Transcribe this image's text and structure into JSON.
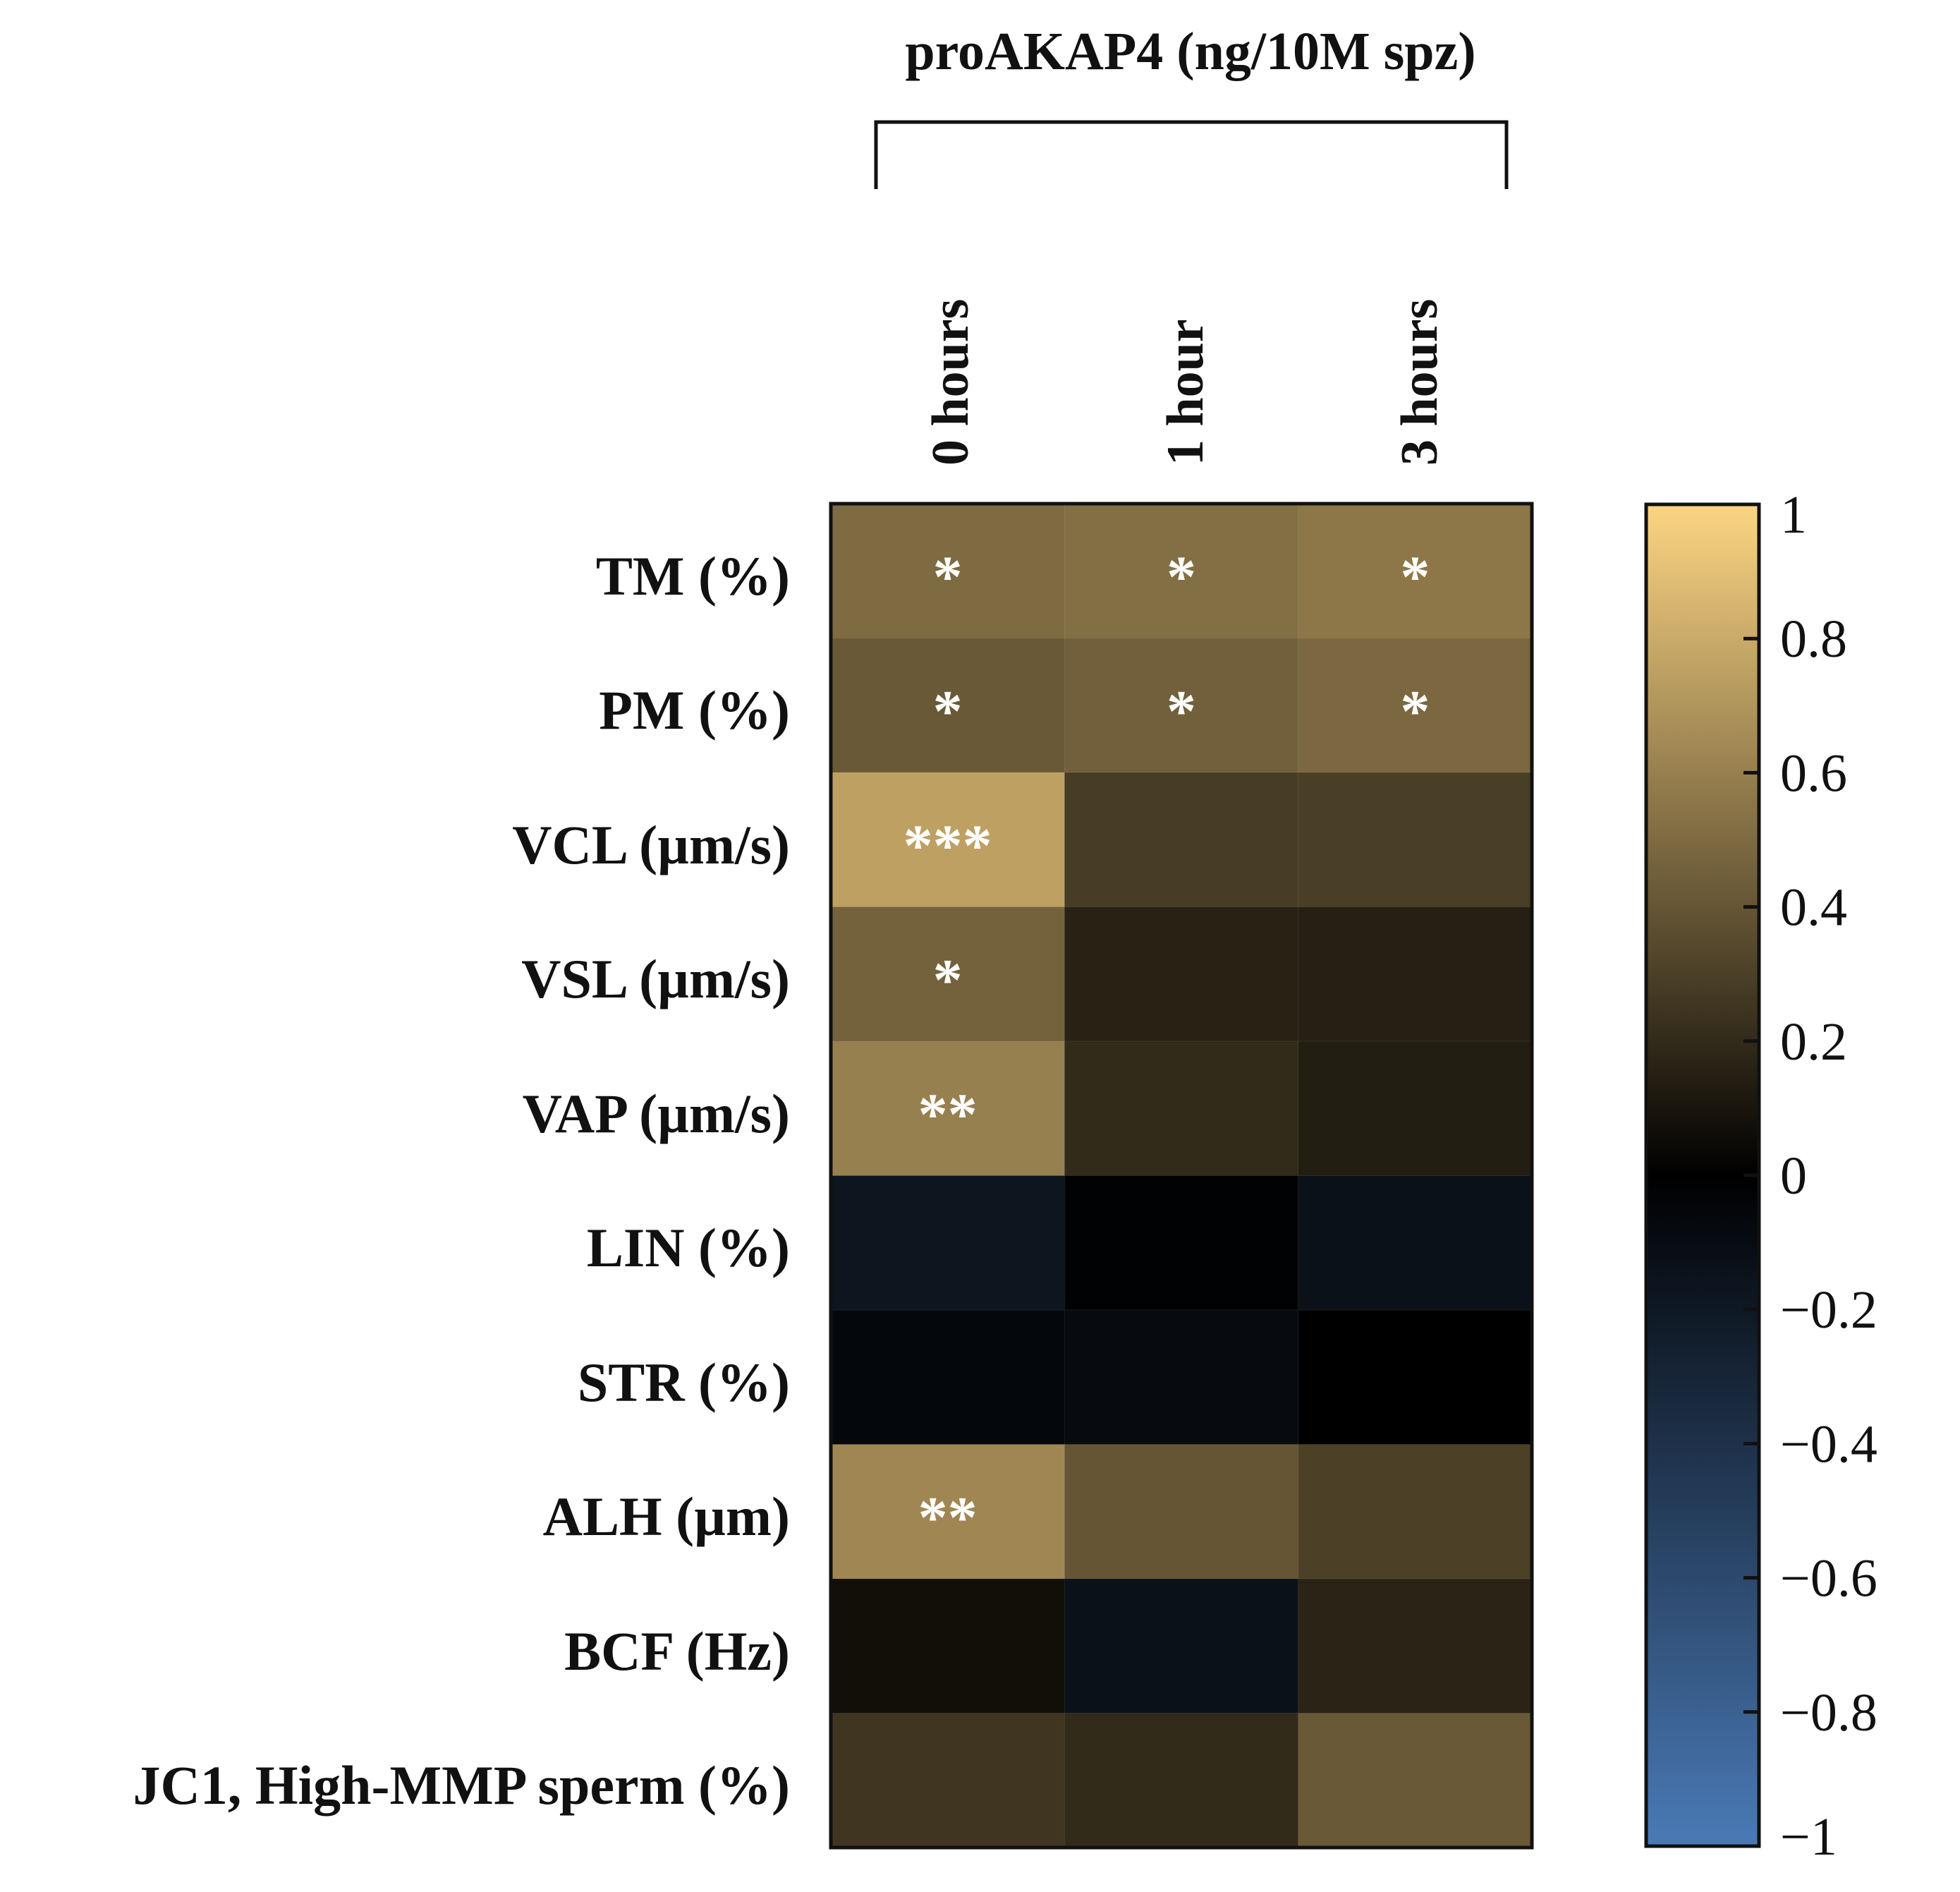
{
  "chart_data": {
    "type": "heatmap",
    "title": "proAKAP4 (ng/10M spz)",
    "columns": [
      "0 hours",
      "1 hour",
      "3 hours"
    ],
    "rows": [
      "TM (%)",
      "PM (%)",
      "VCL (µm/s)",
      "VSL (µm/s)",
      "VAP (µm/s)",
      "LIN (%)",
      "STR (%)",
      "ALH (µm)",
      "BCF (Hz)",
      "JC1, High-MMP sperm (%)"
    ],
    "values": [
      [
        0.5,
        0.52,
        0.56
      ],
      [
        0.42,
        0.45,
        0.49
      ],
      [
        0.75,
        0.28,
        0.29
      ],
      [
        0.46,
        0.16,
        0.15
      ],
      [
        0.6,
        0.2,
        0.14
      ],
      [
        -0.17,
        -0.02,
        -0.14
      ],
      [
        -0.06,
        -0.09,
        0.0
      ],
      [
        0.63,
        0.4,
        0.3
      ],
      [
        0.07,
        -0.14,
        0.17
      ],
      [
        0.25,
        0.2,
        0.42
      ]
    ],
    "significance": [
      [
        "*",
        "*",
        "*"
      ],
      [
        "*",
        "*",
        "*"
      ],
      [
        "***",
        "",
        ""
      ],
      [
        "*",
        "",
        ""
      ],
      [
        "**",
        "",
        ""
      ],
      [
        "",
        "",
        ""
      ],
      [
        "",
        "",
        ""
      ],
      [
        "**",
        "",
        ""
      ],
      [
        "",
        "",
        ""
      ],
      [
        "",
        "",
        ""
      ]
    ],
    "colorbar": {
      "range": [
        -1,
        1
      ],
      "ticks": [
        1,
        0.8,
        0.6,
        0.4,
        0.2,
        0,
        -0.2,
        -0.4,
        -0.6,
        -0.8,
        -1
      ],
      "tick_labels": [
        "1",
        "0.8",
        "0.6",
        "0.4",
        "0.2",
        "0",
        "−0.2",
        "−0.4",
        "−0.6",
        "−0.8",
        "−1"
      ],
      "color_max": "#FCD583",
      "color_zero": "#000000",
      "color_min": "#4A7AB6"
    }
  }
}
